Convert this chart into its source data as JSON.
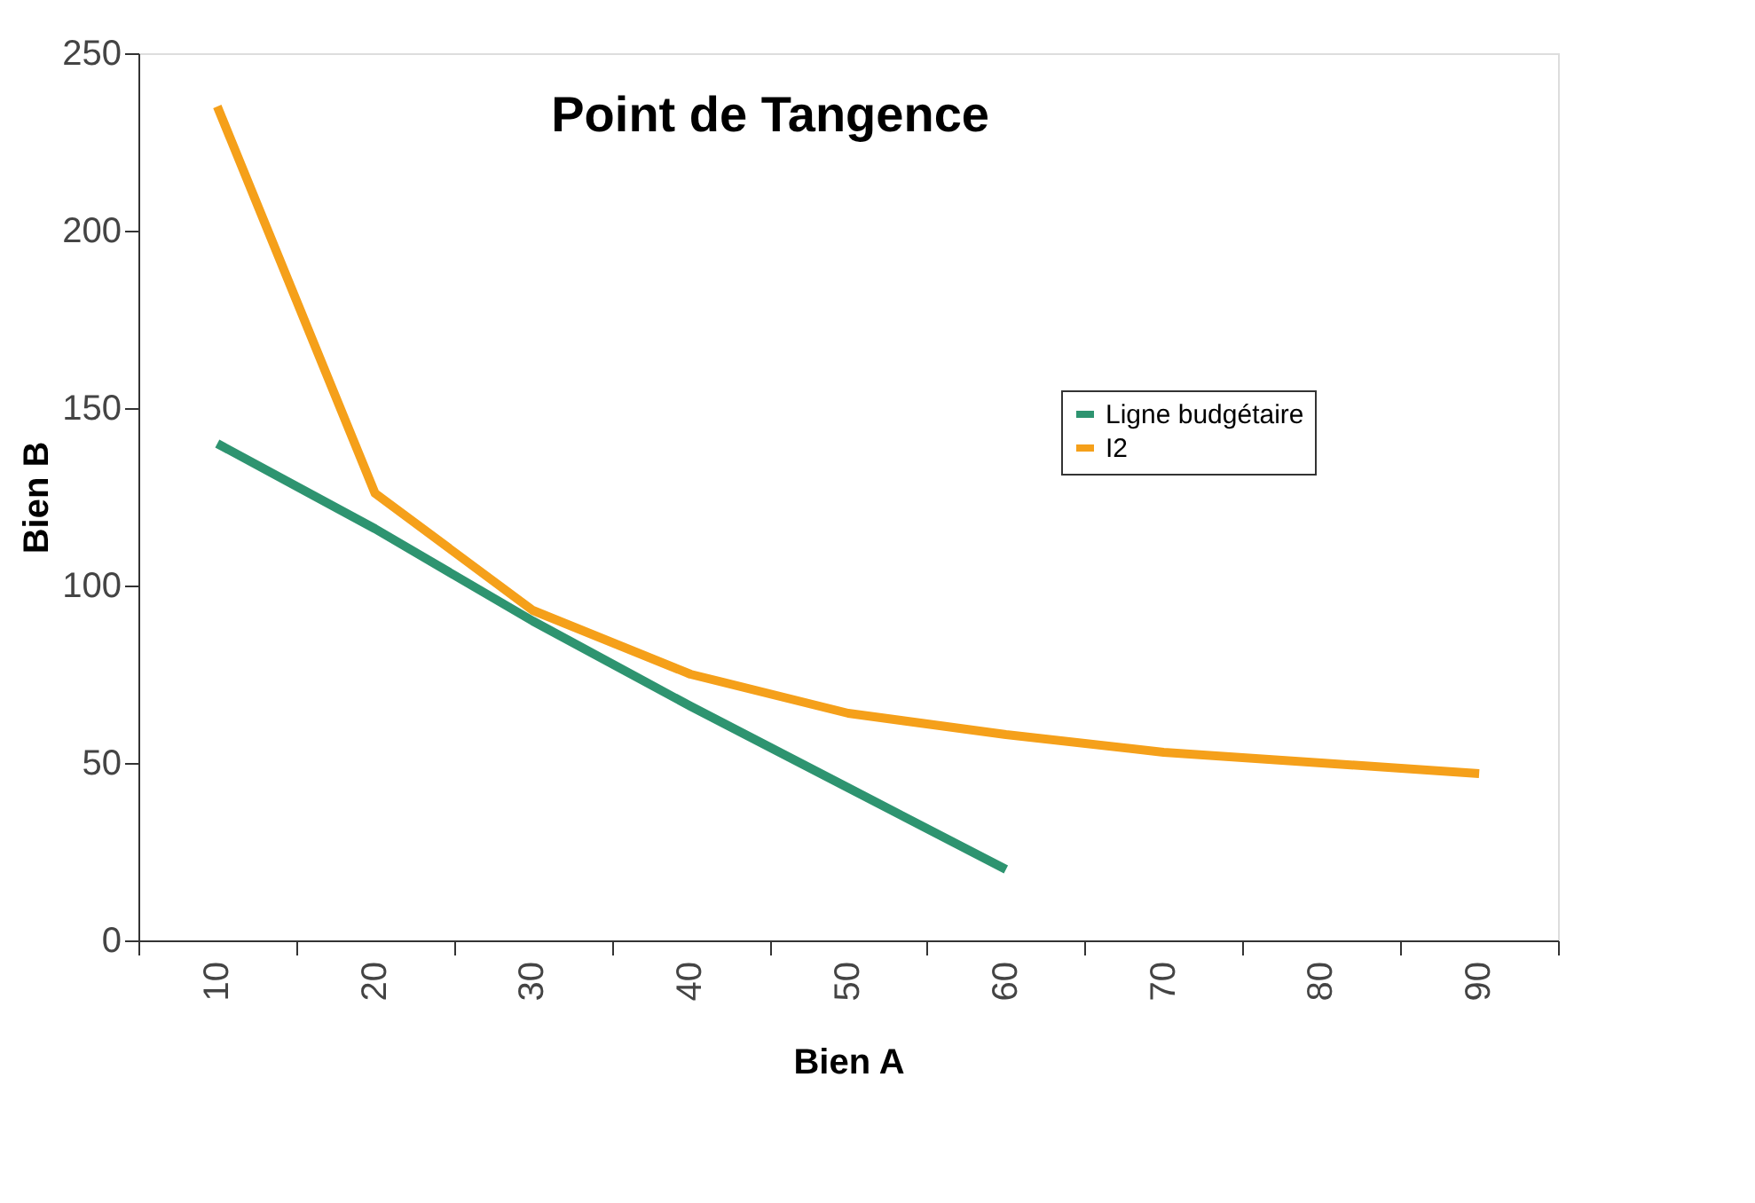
{
  "chart_data": {
    "type": "line",
    "title": "Point de Tangence",
    "xlabel": "Bien A",
    "ylabel": "Bien B",
    "categories": [
      "10",
      "20",
      "30",
      "40",
      "50",
      "60",
      "70",
      "80",
      "90"
    ],
    "series": [
      {
        "name": "Ligne budgétaire",
        "color": "#2e9470",
        "values": [
          140,
          116,
          90,
          66,
          43,
          20,
          null,
          null,
          null
        ]
      },
      {
        "name": "I2",
        "color": "#f5a01a",
        "values": [
          235,
          126,
          93,
          75,
          64,
          58,
          53,
          50,
          47
        ]
      }
    ],
    "ylim": [
      0,
      250
    ],
    "yticks": [
      0,
      50,
      100,
      150,
      200,
      250
    ],
    "grid": false,
    "legend": "right",
    "marker": "none",
    "line_style": "solid"
  }
}
